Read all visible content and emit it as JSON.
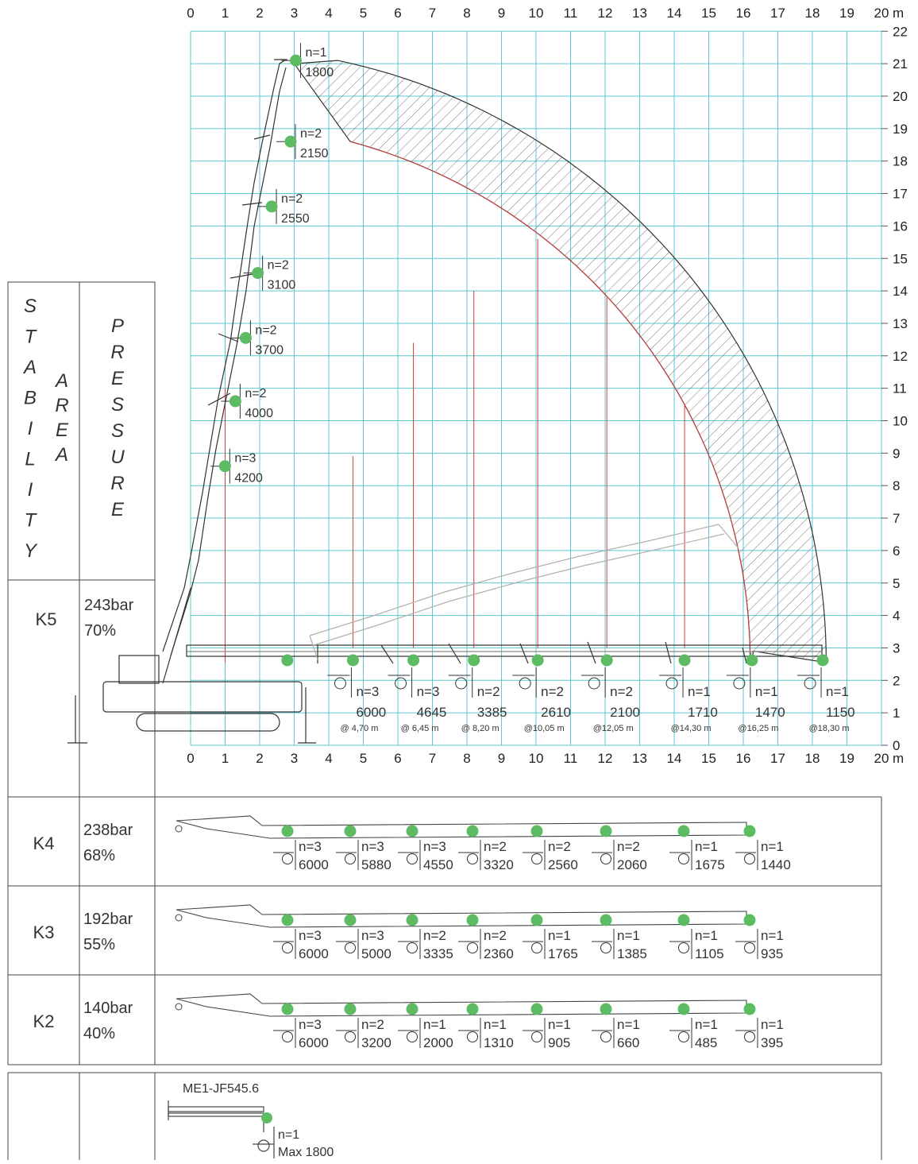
{
  "axes": {
    "x_ticks": [
      "0",
      "1",
      "2",
      "3",
      "4",
      "5",
      "6",
      "7",
      "8",
      "9",
      "10",
      "11",
      "12",
      "13",
      "14",
      "15",
      "16",
      "17",
      "18",
      "19",
      "20"
    ],
    "y_ticks": [
      "0",
      "1",
      "2",
      "3",
      "4",
      "5",
      "6",
      "7",
      "8",
      "9",
      "10",
      "11",
      "12",
      "13",
      "14",
      "15",
      "16",
      "17",
      "18",
      "19",
      "20",
      "21",
      "22"
    ],
    "unit": "m",
    "x_range": [
      0,
      20
    ],
    "y_range": [
      0,
      22
    ]
  },
  "side_labels": {
    "stability": "STABILITY",
    "area": "AREA",
    "pressure": "PRESSURE"
  },
  "vertical_loads": [
    {
      "x": 3.0,
      "y": 21.1,
      "n": "n=1",
      "load": "1800"
    },
    {
      "x": 2.85,
      "y": 18.6,
      "n": "n=2",
      "load": "2150"
    },
    {
      "x": 2.3,
      "y": 16.6,
      "n": "n=2",
      "load": "2550"
    },
    {
      "x": 1.9,
      "y": 14.55,
      "n": "n=2",
      "load": "3100"
    },
    {
      "x": 1.55,
      "y": 12.55,
      "n": "n=2",
      "load": "3700"
    },
    {
      "x": 1.25,
      "y": 10.6,
      "n": "n=2",
      "load": "4000"
    },
    {
      "x": 0.95,
      "y": 8.6,
      "n": "n=3",
      "load": "4200"
    }
  ],
  "k5": {
    "code": "K5",
    "pressure": "243bar",
    "percent": "70%",
    "loads": [
      {
        "x": 4.7,
        "n": "n=3",
        "load": "6000",
        "reach": "@ 4,70 m"
      },
      {
        "x": 6.45,
        "n": "n=3",
        "load": "4645",
        "reach": "@ 6,45 m"
      },
      {
        "x": 8.2,
        "n": "n=2",
        "load": "3385",
        "reach": "@ 8,20 m"
      },
      {
        "x": 10.05,
        "n": "n=2",
        "load": "2610",
        "reach": "@10,05 m"
      },
      {
        "x": 12.05,
        "n": "n=2",
        "load": "2100",
        "reach": "@12,05 m"
      },
      {
        "x": 14.3,
        "n": "n=1",
        "load": "1710",
        "reach": "@14,30 m"
      },
      {
        "x": 16.25,
        "n": "n=1",
        "load": "1470",
        "reach": "@16,25 m"
      },
      {
        "x": 18.3,
        "n": "n=1",
        "load": "1150",
        "reach": "@18,30 m"
      }
    ]
  },
  "rows": [
    {
      "code": "K4",
      "pressure": "238bar",
      "percent": "68%",
      "loads": [
        [
          "n=3",
          "6000"
        ],
        [
          "n=3",
          "5880"
        ],
        [
          "n=3",
          "4550"
        ],
        [
          "n=2",
          "3320"
        ],
        [
          "n=2",
          "2560"
        ],
        [
          "n=2",
          "2060"
        ],
        [
          "n=1",
          "1675"
        ],
        [
          "n=1",
          "1440"
        ]
      ]
    },
    {
      "code": "K3",
      "pressure": "192bar",
      "percent": "55%",
      "loads": [
        [
          "n=3",
          "6000"
        ],
        [
          "n=3",
          "5000"
        ],
        [
          "n=2",
          "3335"
        ],
        [
          "n=2",
          "2360"
        ],
        [
          "n=1",
          "1765"
        ],
        [
          "n=1",
          "1385"
        ],
        [
          "n=1",
          "1105"
        ],
        [
          "n=1",
          "935"
        ]
      ]
    },
    {
      "code": "K2",
      "pressure": "140bar",
      "percent": "40%",
      "loads": [
        [
          "n=3",
          "6000"
        ],
        [
          "n=2",
          "3200"
        ],
        [
          "n=1",
          "2000"
        ],
        [
          "n=1",
          "1310"
        ],
        [
          "n=1",
          "905"
        ],
        [
          "n=1",
          "660"
        ],
        [
          "n=1",
          "485"
        ],
        [
          "n=1",
          "395"
        ]
      ]
    }
  ],
  "jib": {
    "model": "ME1-JF545.6",
    "n": "n=1",
    "load": "Max 1800"
  },
  "colors": {
    "grid": "#5fc8d0",
    "curve": "#d63a3a",
    "marker": "#5dbb63",
    "line": "#444444"
  }
}
